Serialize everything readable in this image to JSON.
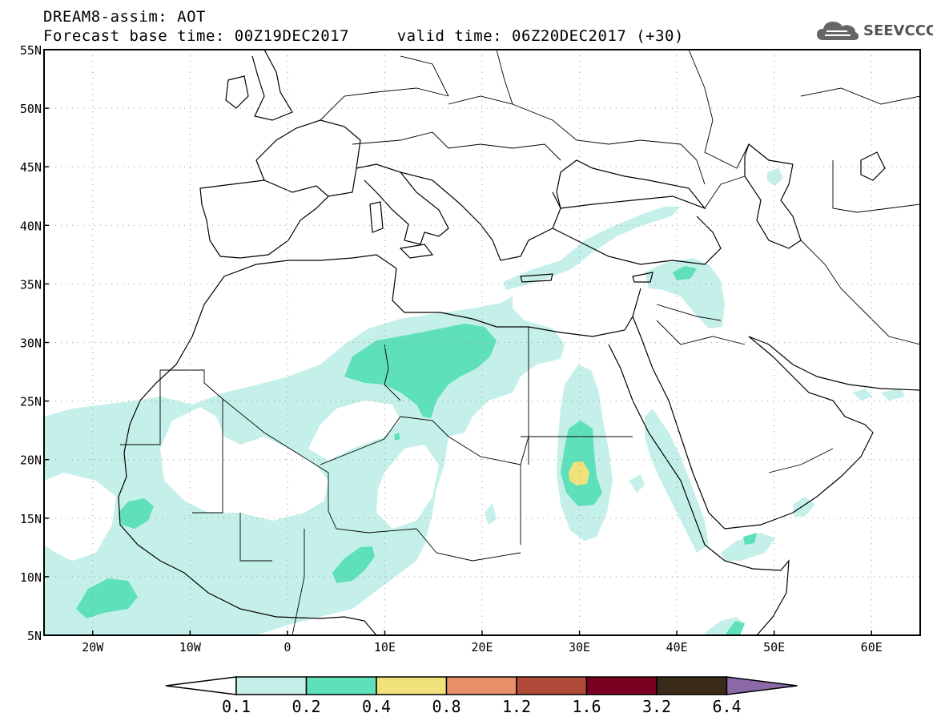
{
  "header": {
    "title_line1": "DREAM8-assim: AOT",
    "title_line2": "Forecast base time: 00Z19DEC2017     valid time: 06Z20DEC2017 (+30)"
  },
  "logo": {
    "text": "SEEVCCC",
    "icon": "cloud-icon"
  },
  "map": {
    "projection": "lat-lon",
    "lon_range": [
      -25,
      65
    ],
    "lat_range": [
      5,
      55
    ],
    "lat_labels": [
      "55N",
      "50N",
      "45N",
      "40N",
      "35N",
      "30N",
      "25N",
      "20N",
      "15N",
      "10N",
      "5N"
    ],
    "lat_values": [
      55,
      50,
      45,
      40,
      35,
      30,
      25,
      20,
      15,
      10,
      5
    ],
    "lon_labels": [
      "20W",
      "10W",
      "0",
      "10E",
      "20E",
      "30E",
      "40E",
      "50E",
      "60E"
    ],
    "lon_values": [
      -20,
      -10,
      0,
      10,
      20,
      30,
      40,
      50,
      60
    ],
    "grid": "dotted"
  },
  "colorbar": {
    "labels": [
      "0.1",
      "0.2",
      "0.4",
      "0.8",
      "1.2",
      "1.6",
      "3.2",
      "6.4"
    ],
    "colors": [
      "#c5f0ea",
      "#5ee0bb",
      "#f0e27a",
      "#e8906a",
      "#b24a3a",
      "#7a0022",
      "#3a2a18",
      "#8c6aa8"
    ],
    "under_color": "#ffffff"
  },
  "fields": {
    "aot_0_1_color": "#c5f0ea",
    "aot_0_2_color": "#5ee0bb",
    "aot_0_4_color": "#f0e27a"
  }
}
